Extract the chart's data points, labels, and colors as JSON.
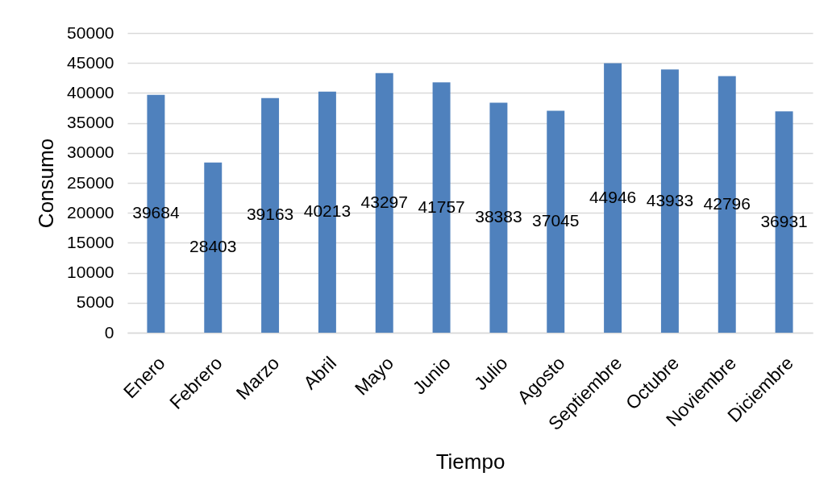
{
  "chart_data": {
    "type": "bar",
    "xlabel": "Tiempo",
    "ylabel": "Consumo",
    "categories": [
      "Enero",
      "Febrero",
      "Marzo",
      "Abril",
      "Mayo",
      "Junio",
      "Julio",
      "Agosto",
      "Septiembre",
      "Octubre",
      "Noviembre",
      "Diciembre"
    ],
    "values": [
      39684,
      28403,
      39163,
      40213,
      43297,
      41757,
      38383,
      37045,
      44946,
      43933,
      42796,
      36931
    ],
    "color": "#4f81bd",
    "ylim": [
      0,
      50000
    ],
    "yticks": [
      0,
      5000,
      10000,
      15000,
      20000,
      25000,
      30000,
      35000,
      40000,
      45000,
      50000
    ],
    "grid": "y",
    "data_labels": true
  }
}
